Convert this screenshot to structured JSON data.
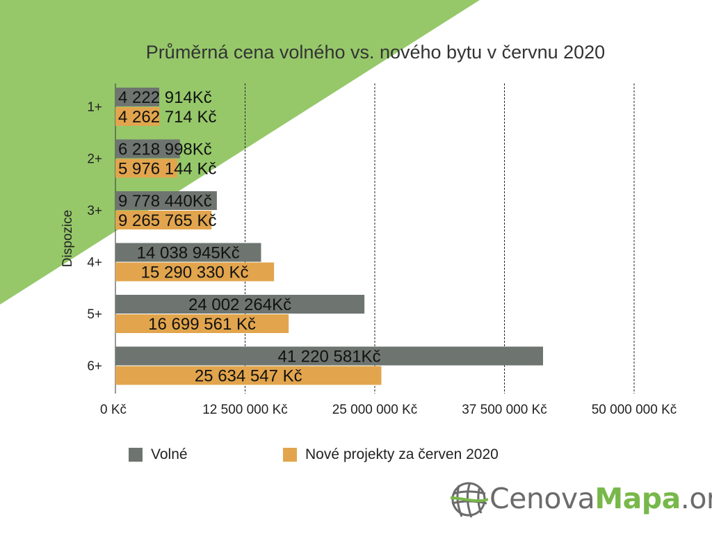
{
  "colors": {
    "background_accent": "#96c86a",
    "series_volne": "#6e7570",
    "series_nove": "#e2a54d",
    "grid": "#222222"
  },
  "chart_data": {
    "type": "bar",
    "orientation": "horizontal",
    "title": "Průměrná cena volného vs. nového bytu v červnu 2020",
    "ylabel": "Dispozice",
    "xlabel": "",
    "categories": [
      "1+",
      "2+",
      "3+",
      "4+",
      "5+",
      "6+"
    ],
    "xlim": [
      0,
      50000000
    ],
    "x_ticks": [
      0,
      12500000,
      25000000,
      37500000,
      50000000
    ],
    "x_tick_labels": [
      "0 Kč",
      "12 500 000 Kč",
      "25 000 000 Kč",
      "37 500 000 Kč",
      "50 000 000 Kč"
    ],
    "grid": "vertical dashed",
    "legend_position": "bottom",
    "series": [
      {
        "name": "Volné",
        "color": "#6e7570",
        "values": [
          4222914,
          6218998,
          9778440,
          14038945,
          24002264,
          41220581
        ],
        "labels": [
          "4 222 914Kč",
          "6 218 998Kč",
          "9 778 440Kč",
          "14 038 945Kč",
          "24 002 264Kč",
          "41 220 581Kč"
        ]
      },
      {
        "name": "Nové projekty za červen 2020",
        "color": "#e2a54d",
        "values": [
          4262714,
          5976144,
          9265765,
          15290330,
          16699561,
          25634547
        ],
        "labels": [
          "4 262 714 Kč",
          "5 976 144 Kč",
          "9 265 765 Kč",
          "15 290 330 Kč",
          "16 699 561 Kč",
          "25 634 547 Kč"
        ]
      }
    ]
  },
  "legend": {
    "items": [
      {
        "label": "Volné",
        "color": "#6e7570"
      },
      {
        "label": "Nové projekty za červen 2020",
        "color": "#e2a54d"
      }
    ]
  },
  "logo": {
    "part1": "Cenova",
    "part2": "Mapa",
    "part3": ".org",
    "icon": "globe-icon"
  }
}
